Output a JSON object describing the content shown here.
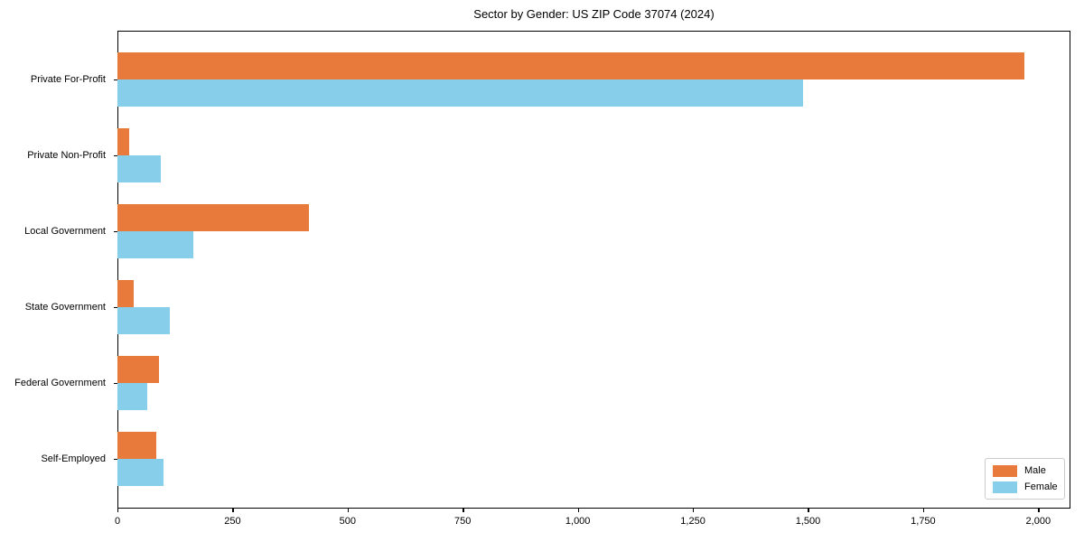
{
  "chart_data": {
    "type": "bar",
    "orientation": "horizontal",
    "title": "Sector by Gender: US ZIP Code 37074 (2024)",
    "categories": [
      "Private For-Profit",
      "Private Non-Profit",
      "Local Government",
      "State Government",
      "Federal Government",
      "Self-Employed"
    ],
    "series": [
      {
        "name": "Male",
        "color": "#e87a3c",
        "values": [
          1970,
          25,
          415,
          35,
          90,
          85
        ]
      },
      {
        "name": "Female",
        "color": "#87ceeb",
        "values": [
          1490,
          95,
          165,
          113,
          65,
          100
        ]
      }
    ],
    "xlim": [
      0,
      2070
    ],
    "xticks": [
      0,
      250,
      500,
      750,
      1000,
      1250,
      1500,
      1750,
      2000
    ],
    "xtick_labels": [
      "0",
      "250",
      "500",
      "750",
      "1,000",
      "1,250",
      "1,500",
      "1,750",
      "2,000"
    ],
    "ylabel": "",
    "xlabel": "",
    "grid": false,
    "legend": {
      "position": "lower right",
      "entries": [
        "Male",
        "Female"
      ]
    },
    "colors": {
      "male": "#e87a3c",
      "female": "#87ceeb",
      "spine": "#000000",
      "background": "#ffffff"
    }
  }
}
